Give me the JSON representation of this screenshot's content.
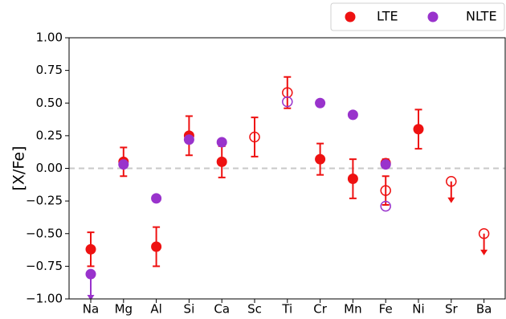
{
  "chart_data": {
    "type": "scatter",
    "title": "",
    "xlabel": "",
    "ylabel": "[X/Fe]",
    "ylim": [
      -1.0,
      1.0
    ],
    "yticks": [
      "1.00",
      "0.75",
      "0.50",
      "0.25",
      "0.00",
      "−0.25",
      "−0.50",
      "−0.75",
      "−1.00"
    ],
    "ytick_values": [
      1.0,
      0.75,
      0.5,
      0.25,
      0.0,
      -0.25,
      -0.5,
      -0.75,
      -1.0
    ],
    "categories": [
      "Na",
      "Mg",
      "Al",
      "Si",
      "Ca",
      "Sc",
      "Ti",
      "Cr",
      "Mn",
      "Fe",
      "Ni",
      "Sr",
      "Ba"
    ],
    "reference_line": {
      "y": 0.0,
      "style": "dashed",
      "color": "#c8c8c8"
    },
    "legend": {
      "placement": "top-right, outside plot area",
      "entries": [
        "LTE",
        "NLTE"
      ]
    },
    "colors": {
      "LTE": "#ee1111",
      "NLTE": "#9933cc"
    },
    "series": [
      {
        "name": "LTE",
        "filled": [
          {
            "category": "Na",
            "y": -0.62,
            "err": 0.13
          },
          {
            "category": "Mg",
            "y": 0.05,
            "err": 0.11
          },
          {
            "category": "Al",
            "y": -0.6,
            "err": 0.15
          },
          {
            "category": "Si",
            "y": 0.25,
            "err": 0.15
          },
          {
            "category": "Ca",
            "y": 0.05,
            "err": 0.12
          },
          {
            "category": "Cr",
            "y": 0.07,
            "err": 0.12
          },
          {
            "category": "Mn",
            "y": -0.08,
            "err": 0.15
          },
          {
            "category": "Fe",
            "y": 0.04,
            "err": 0.03
          },
          {
            "category": "Ni",
            "y": 0.3,
            "err": 0.15
          }
        ],
        "open": [
          {
            "category": "Sc",
            "y": 0.24,
            "err": 0.15
          },
          {
            "category": "Ti",
            "y": 0.58,
            "err": 0.12
          },
          {
            "category": "Fe",
            "y": -0.17,
            "err": 0.11
          }
        ],
        "upper_limits": [
          {
            "category": "Sr",
            "y": -0.1
          },
          {
            "category": "Ba",
            "y": -0.5
          }
        ]
      },
      {
        "name": "NLTE",
        "filled": [
          {
            "category": "Na",
            "y": -0.81
          },
          {
            "category": "Mg",
            "y": 0.03
          },
          {
            "category": "Al",
            "y": -0.23
          },
          {
            "category": "Si",
            "y": 0.22
          },
          {
            "category": "Ca",
            "y": 0.2
          },
          {
            "category": "Cr",
            "y": 0.5
          },
          {
            "category": "Mn",
            "y": 0.41
          },
          {
            "category": "Fe",
            "y": 0.03
          }
        ],
        "open": [
          {
            "category": "Ti",
            "y": 0.51
          },
          {
            "category": "Fe",
            "y": -0.29
          }
        ],
        "upper_limits": [
          {
            "category": "Na",
            "y": -0.81
          }
        ]
      }
    ]
  }
}
